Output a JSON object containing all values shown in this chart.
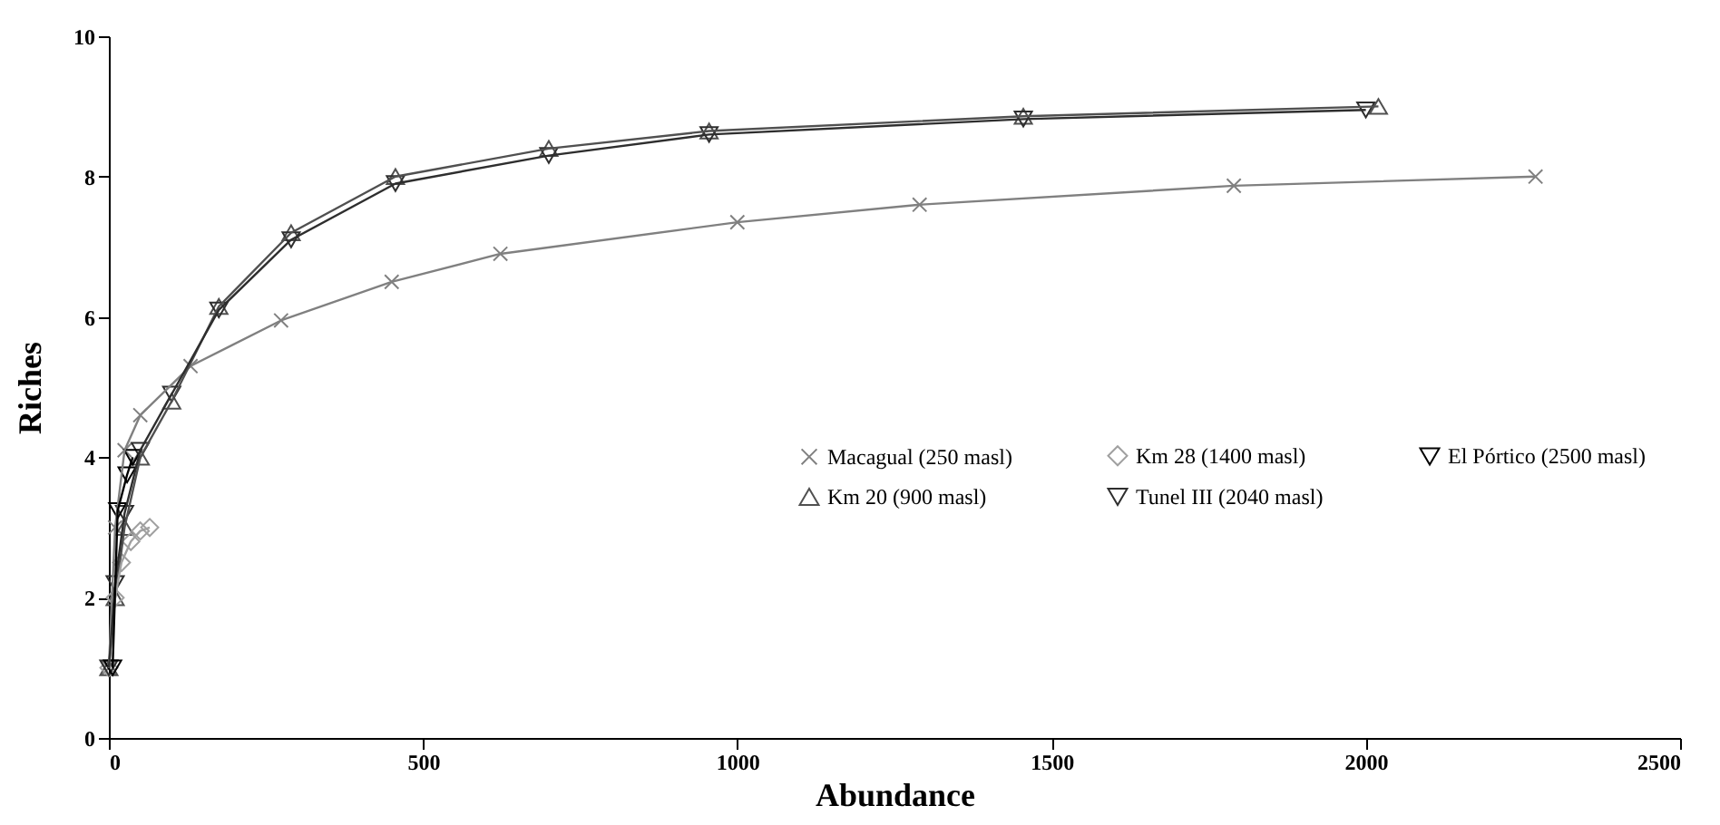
{
  "chart_data": {
    "type": "line",
    "xlabel": "Abundance",
    "ylabel": "Riches",
    "xlim": [
      0,
      2500
    ],
    "ylim": [
      0,
      10
    ],
    "xticks": [
      0,
      500,
      1000,
      1500,
      2000,
      2500
    ],
    "yticks": [
      0,
      2,
      4,
      6,
      8,
      10
    ],
    "grid": false,
    "legend": "right",
    "line_style": "solid",
    "series": [
      {
        "name": "Macagual (250 masl)",
        "color": "#808080",
        "marker": "cross",
        "x": [
          0,
          10,
          25,
          50,
          130,
          274,
          450,
          623,
          1000,
          1290,
          1790,
          2270
        ],
        "values": [
          1,
          3,
          4.1,
          4.6,
          5.3,
          5.95,
          6.5,
          6.9,
          7.35,
          7.6,
          7.87,
          8.0
        ]
      },
      {
        "name": "Km 20 (900 masl)",
        "color": "#505050",
        "marker": "triangle",
        "x": [
          0,
          10,
          25,
          50,
          100,
          175,
          290,
          456,
          700,
          955,
          1455,
          2020
        ],
        "values": [
          1,
          2,
          3,
          4,
          4.8,
          6.15,
          7.2,
          8.0,
          8.4,
          8.65,
          8.86,
          9.0
        ]
      },
      {
        "name": "Km 28 (1400 masl)",
        "color": "#a0a0a0",
        "marker": "diamond",
        "x": [
          0,
          10,
          20,
          35,
          50,
          65
        ],
        "values": [
          1,
          2,
          2.5,
          2.8,
          2.95,
          3
        ]
      },
      {
        "name": "Tunel III (2040 masl)",
        "color": "#2e2e2e",
        "marker": "triangle-down",
        "x": [
          0,
          10,
          25,
          50,
          100,
          175,
          290,
          456,
          700,
          955,
          1455,
          2000
        ],
        "values": [
          1,
          2.2,
          3.2,
          4.1,
          4.9,
          6.1,
          7.1,
          7.9,
          8.3,
          8.6,
          8.82,
          8.95
        ]
      },
      {
        "name": "El Pórtico (2500 masl)",
        "color": "#000000",
        "marker": "triangle-down",
        "x": [
          6,
          14,
          29,
          38
        ],
        "values": [
          1,
          3.24,
          3.75,
          4.0
        ]
      }
    ]
  }
}
